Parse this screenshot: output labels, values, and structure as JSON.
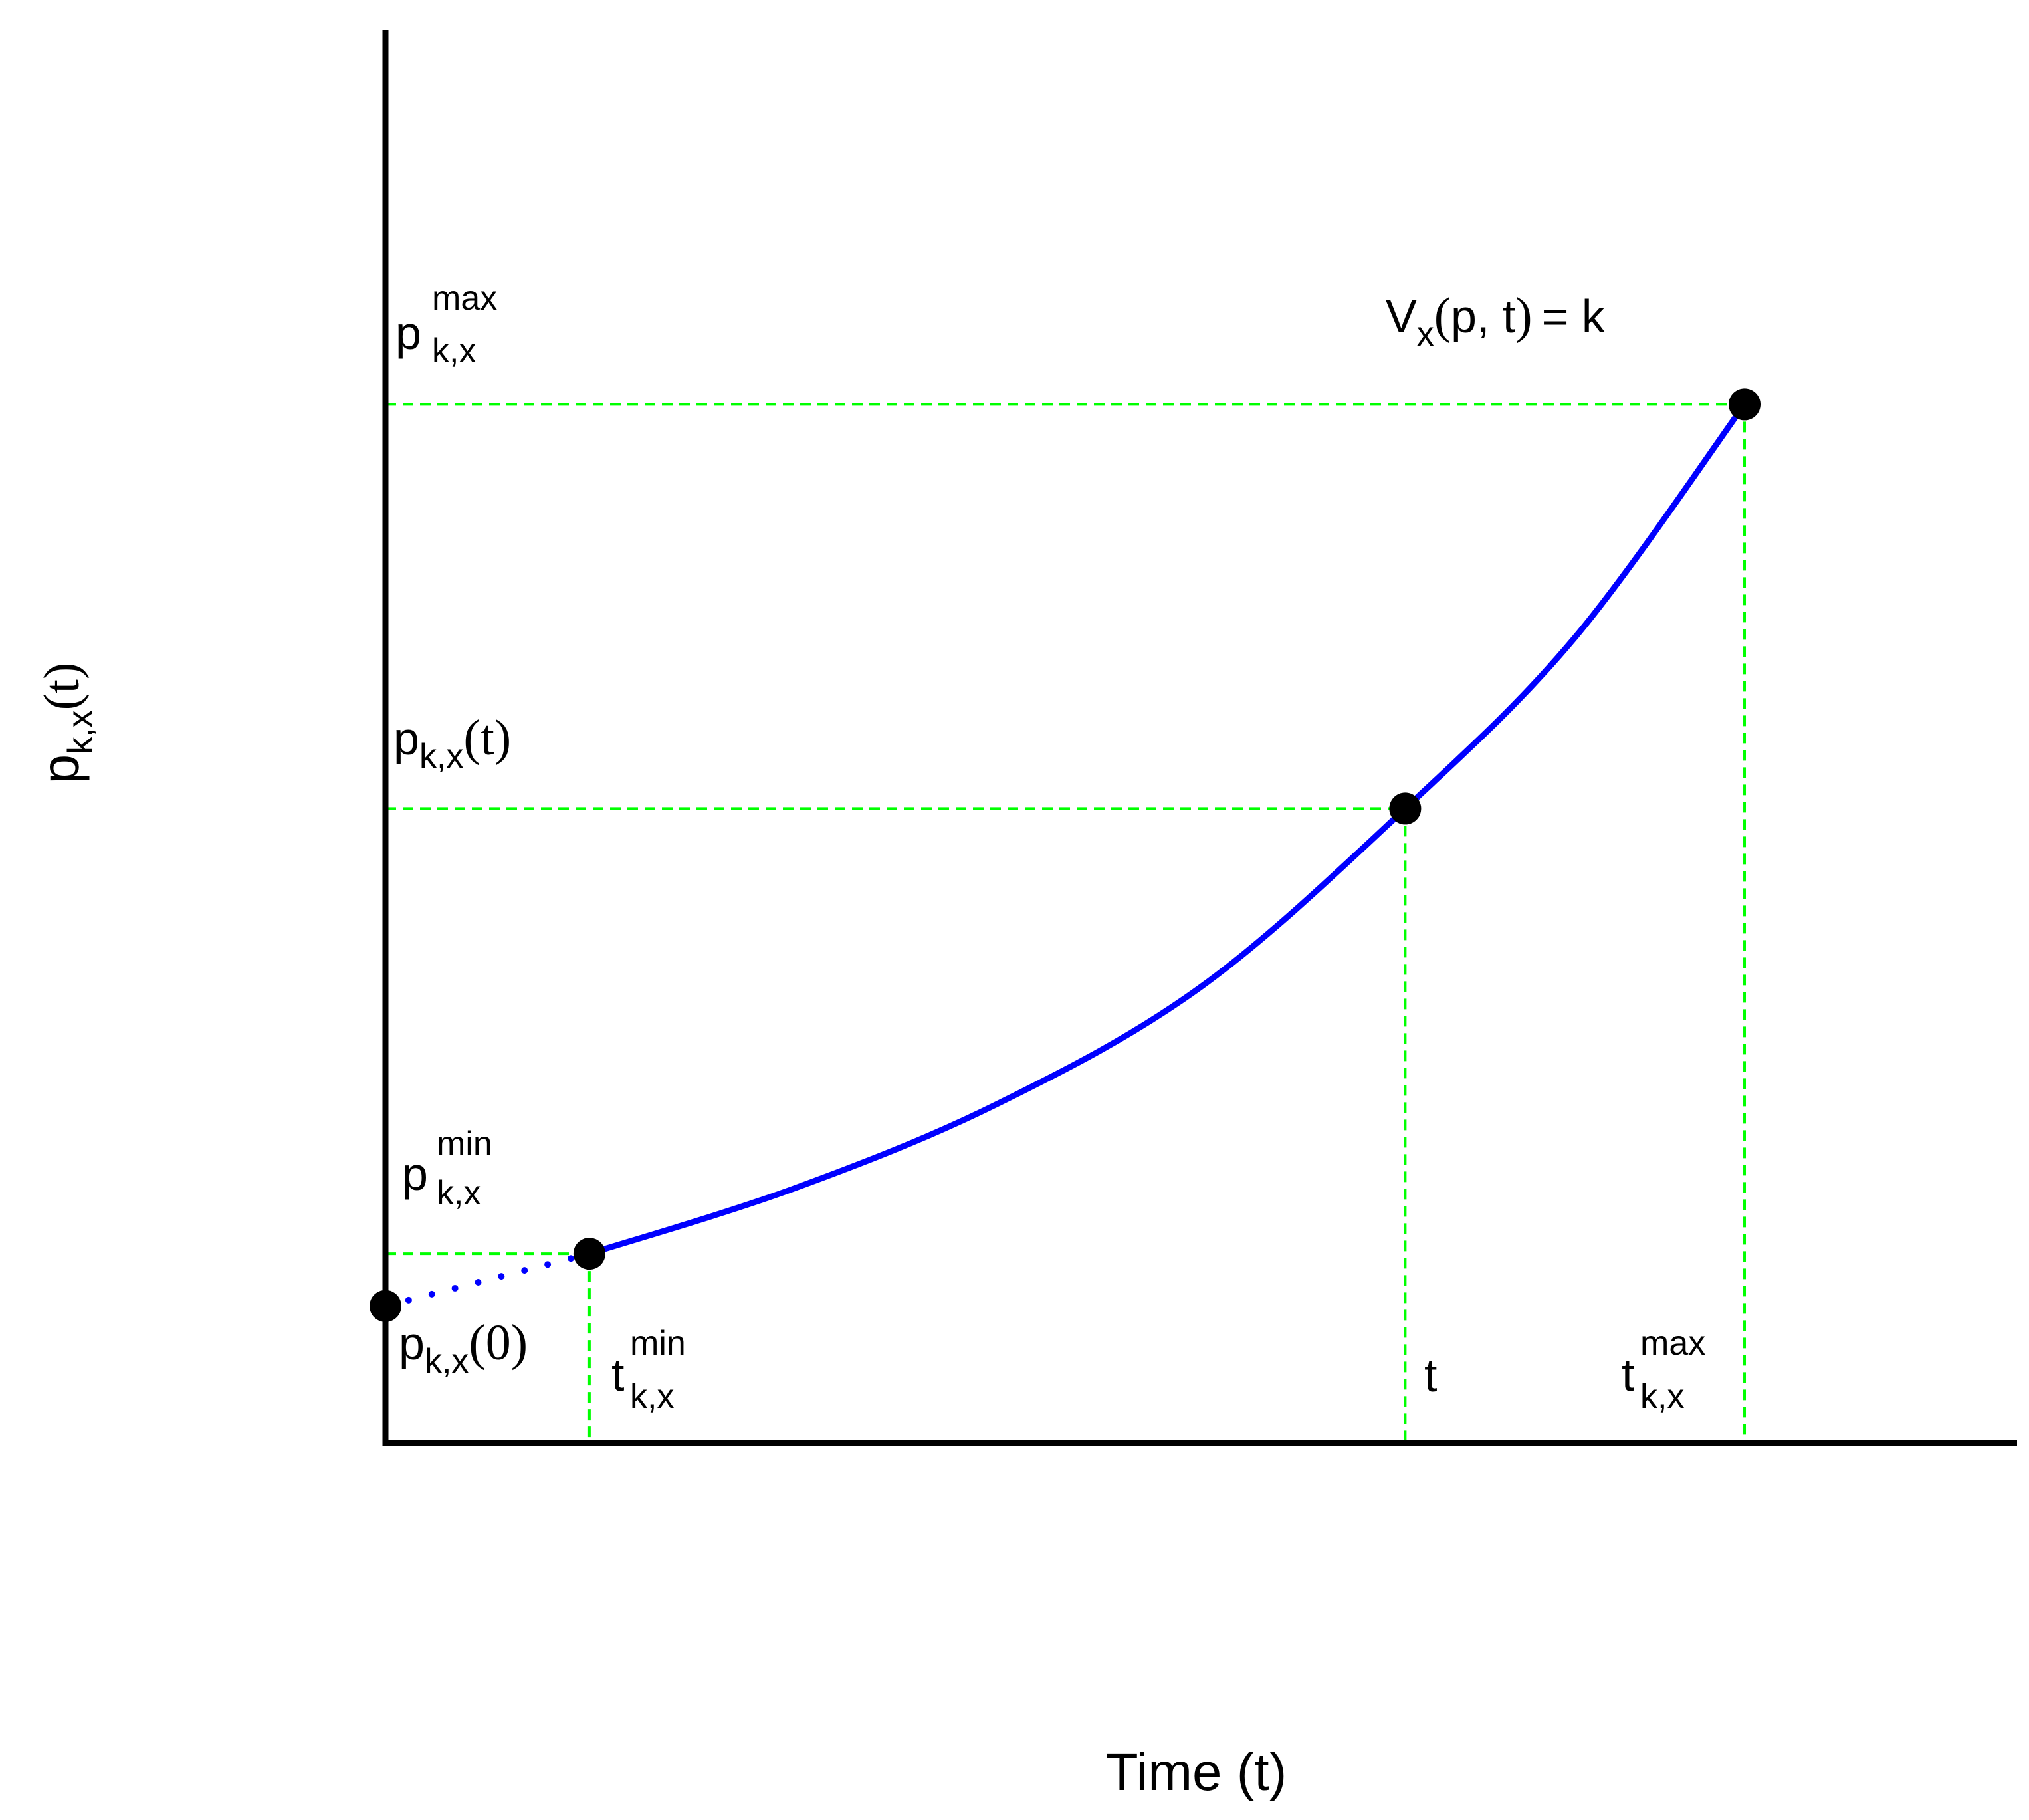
{
  "colors": {
    "curve": "#0000ff",
    "guide": "#00ff00",
    "axis": "#000000",
    "marker": "#000000"
  },
  "chart_data": {
    "type": "line",
    "title": "",
    "xlabel": "Time (t)",
    "ylabel": {
      "base": "p",
      "sub": "k,x",
      "arg": "(t)"
    },
    "ticks": false,
    "grid": false,
    "legend": "none",
    "curve_label": {
      "v": "V",
      "v_sub": "x",
      "open": "(",
      "args": "p, t",
      "close": ")",
      "eq": "= k"
    },
    "annotations": {
      "p_max": {
        "base": "p",
        "sub": "k,x",
        "sup": "max"
      },
      "p_t": {
        "base": "p",
        "sub": "k,x",
        "arg": "(t)"
      },
      "p_min": {
        "base": "p",
        "sub": "k,x",
        "sup": "min"
      },
      "p_0": {
        "base": "p",
        "sub": "k,x",
        "arg": "(0)"
      },
      "t_min": {
        "base": "t",
        "sub": "k,x",
        "sup": "min"
      },
      "t_mid": {
        "base": "t"
      },
      "t_max": {
        "base": "t",
        "sub": "k,x",
        "sup": "max"
      }
    },
    "xlim": [
      0,
      1
    ],
    "ylim": [
      0,
      1
    ],
    "key_points": [
      {
        "name": "p(0)",
        "x": 0.0,
        "y": 0.097
      },
      {
        "name": "p_min at t_min",
        "x": 0.125,
        "y": 0.134
      },
      {
        "name": "p(t) at t",
        "x": 0.625,
        "y": 0.449
      },
      {
        "name": "p_max at t_max",
        "x": 0.833,
        "y": 0.735
      }
    ],
    "series": [
      {
        "style": "dotted",
        "points": [
          [
            0.0,
            0.097
          ],
          [
            0.125,
            0.134
          ]
        ]
      },
      {
        "style": "solid",
        "points": [
          [
            0.125,
            0.134
          ],
          [
            0.25,
            0.18
          ],
          [
            0.375,
            0.24
          ],
          [
            0.5,
            0.323
          ],
          [
            0.625,
            0.449
          ],
          [
            0.729,
            0.57
          ],
          [
            0.833,
            0.735
          ]
        ]
      }
    ]
  }
}
